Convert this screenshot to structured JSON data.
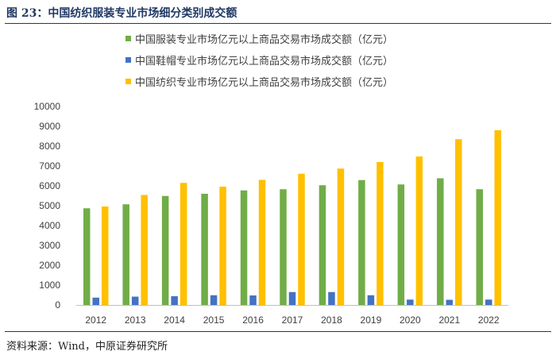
{
  "figure": {
    "title": "图 23：中国纺织服装专业市场细分类别成交额",
    "source": "资料来源：Wind，中原证券研究所"
  },
  "chart_data": {
    "type": "bar",
    "title": "",
    "xlabel": "",
    "ylabel": "",
    "ylim": [
      0,
      10000
    ],
    "yticks": [
      0,
      1000,
      2000,
      3000,
      4000,
      5000,
      6000,
      7000,
      8000,
      9000,
      10000
    ],
    "legend_position": "top",
    "categories": [
      "2012",
      "2013",
      "2014",
      "2015",
      "2016",
      "2017",
      "2018",
      "2019",
      "2020",
      "2021",
      "2022"
    ],
    "series": [
      {
        "name": "中国服装专业市场亿元以上商品交易市场成交额（亿元）",
        "color": "#70ad47",
        "values": [
          4870,
          5070,
          5490,
          5600,
          5770,
          5830,
          6030,
          6290,
          6070,
          6380,
          5830
        ]
      },
      {
        "name": "中国鞋帽专业市场亿元以上商品交易市场成交额（亿元）",
        "color": "#4472c4",
        "values": [
          370,
          420,
          440,
          490,
          480,
          650,
          650,
          490,
          270,
          260,
          270
        ]
      },
      {
        "name": "中国纺织专业市场亿元以上商品交易市场成交额（亿元）",
        "color": "#ffc000",
        "values": [
          4960,
          5540,
          6150,
          5960,
          6300,
          6610,
          6870,
          7200,
          7480,
          8350,
          8800
        ]
      }
    ]
  }
}
